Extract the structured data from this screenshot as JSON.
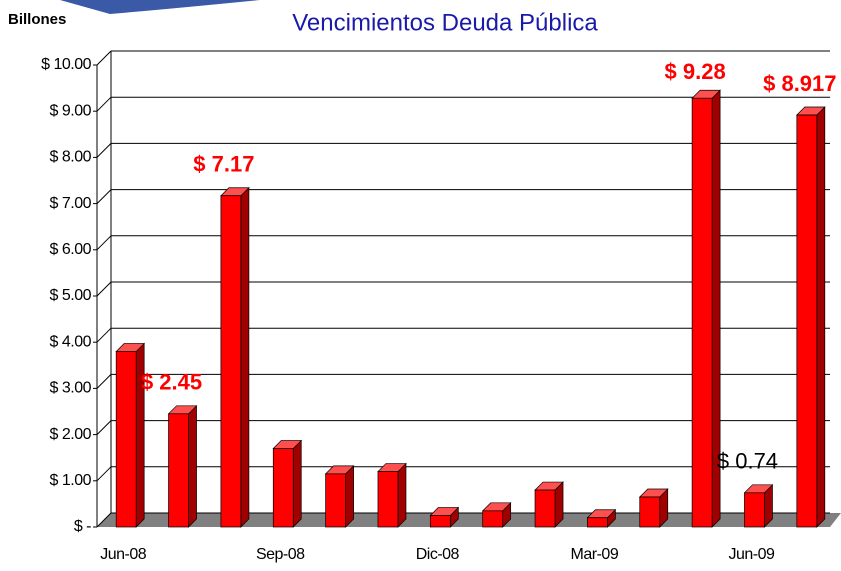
{
  "chart_data": {
    "type": "bar3d",
    "title": "Vencimientos Deuda Pública",
    "y_label": "Billones",
    "categories": [
      "Jun-08",
      null,
      null,
      "Sep-08",
      null,
      null,
      "Dic-08",
      null,
      null,
      "Mar-09",
      null,
      null,
      "Jun-09",
      null
    ],
    "values": [
      3.8,
      2.45,
      7.17,
      1.7,
      1.15,
      1.2,
      0.25,
      0.35,
      0.8,
      0.2,
      0.65,
      9.28,
      0.74,
      8.917
    ],
    "value_labels": [
      null,
      "$ 2.45",
      "$ 7.17",
      null,
      null,
      null,
      null,
      null,
      null,
      null,
      null,
      "$ 9.28",
      "$ 0.74",
      "$ 8.917"
    ],
    "color": "#ff0000",
    "ylim": [
      0,
      10
    ],
    "yticks": [
      {
        "value": 0,
        "label": "$ -"
      },
      {
        "value": 1,
        "label": "$ 1.00"
      },
      {
        "value": 2,
        "label": "$ 2.00"
      },
      {
        "value": 3,
        "label": "$ 3.00"
      },
      {
        "value": 4,
        "label": "$ 4.00"
      },
      {
        "value": 5,
        "label": "$ 5.00"
      },
      {
        "value": 6,
        "label": "$ 6.00"
      },
      {
        "value": 7,
        "label": "$ 7.00"
      },
      {
        "value": 8,
        "label": "$ 8.00"
      },
      {
        "value": 9,
        "label": "$ 9.00"
      },
      {
        "value": 10,
        "label": "$ 10.00"
      }
    ],
    "grid": true
  }
}
